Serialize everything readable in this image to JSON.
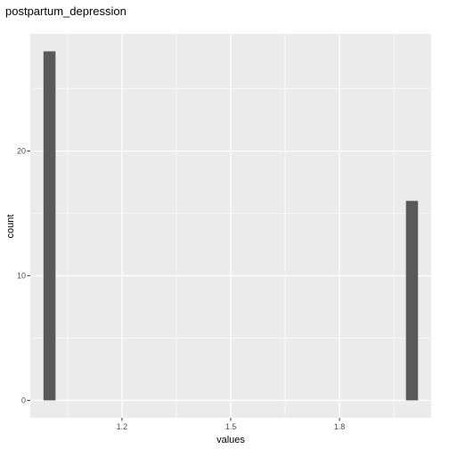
{
  "chart_data": {
    "type": "bar",
    "title": "postpartum_depression",
    "xlabel": "values",
    "ylabel": "count",
    "xlim": [
      0.947,
      2.053
    ],
    "ylim": [
      -1.4,
      29.4
    ],
    "x_ticks": [
      1.2,
      1.5,
      1.8
    ],
    "x_tick_labels": [
      "1.2",
      "1.5",
      "1.8"
    ],
    "y_ticks": [
      0,
      10,
      20
    ],
    "y_tick_labels": [
      "0",
      "10",
      "20"
    ],
    "bin_width": 0.0333,
    "bars": [
      {
        "x": 1.0,
        "count": 28
      },
      {
        "x": 2.0,
        "count": 16
      }
    ],
    "grid": true,
    "colors": {
      "panel": "#ebebeb",
      "grid_major": "#ffffff",
      "bar": "#595959"
    }
  }
}
